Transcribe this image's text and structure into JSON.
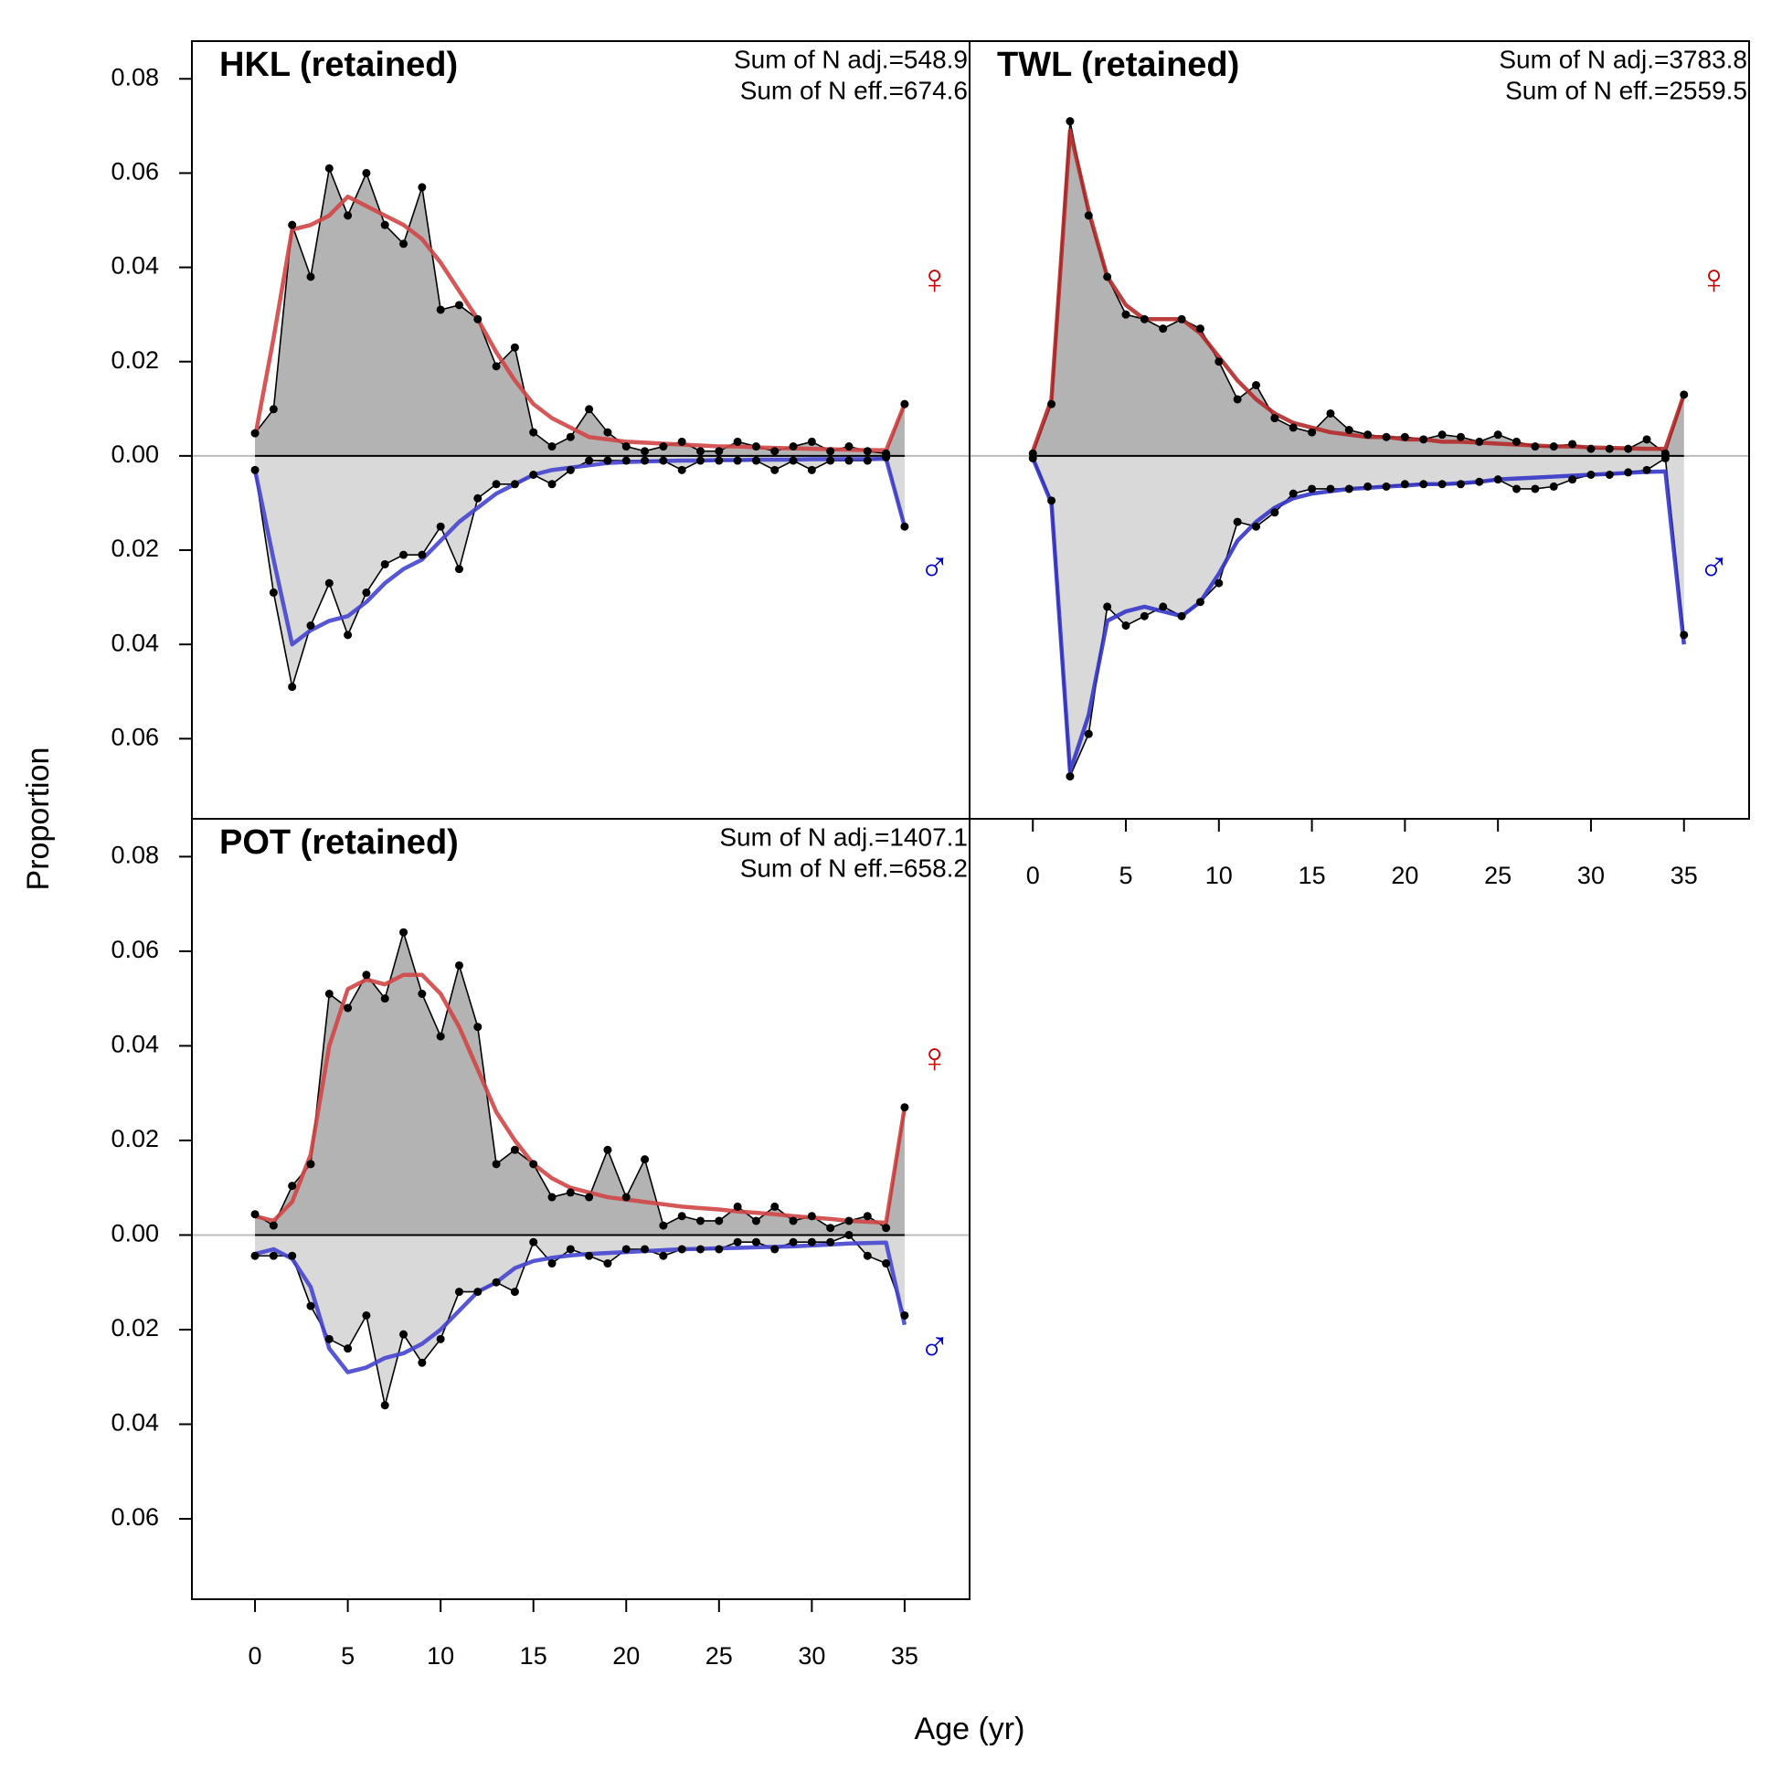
{
  "x_label": "Age (yr)",
  "y_label": "Proportion",
  "chart_data": [
    {
      "type": "area",
      "title": "HKL (retained)",
      "annotations": [
        "Sum of N adj.=548.9",
        "Sum of N eff.=674.6"
      ],
      "x": [
        0,
        1,
        2,
        3,
        4,
        5,
        6,
        7,
        8,
        9,
        10,
        11,
        12,
        13,
        14,
        15,
        16,
        17,
        18,
        19,
        20,
        21,
        22,
        23,
        24,
        25,
        26,
        27,
        28,
        29,
        30,
        31,
        32,
        33,
        34,
        35
      ],
      "xlim": [
        -3.4,
        38.5
      ],
      "ylim": [
        -0.077,
        0.088
      ],
      "yticks": [
        0.08,
        0.06,
        0.04,
        0.02,
        {
          "value": 0,
          "label": "0.00"
        },
        {
          "value": -0.02,
          "label": "0.02"
        },
        {
          "value": -0.04,
          "label": "0.04"
        },
        {
          "value": -0.06,
          "label": "0.06"
        }
      ],
      "series": [
        {
          "name": "♀",
          "color": "#cc0000",
          "direction": "up",
          "fill": "#b3b3b3",
          "obs_color": "#000000",
          "fit_color": "#d04545",
          "values": [
            0.0048,
            0.0099,
            0.049,
            0.038,
            0.061,
            0.051,
            0.06,
            0.049,
            0.045,
            0.057,
            0.031,
            0.032,
            0.029,
            0.019,
            0.023,
            0.005,
            0.002,
            0.004,
            0.0099,
            0.005,
            0.002,
            0.001,
            0.002,
            0.003,
            0.001,
            0.001,
            0.003,
            0.002,
            0.001,
            0.002,
            0.003,
            0.001,
            0.002,
            0.001,
            0.0005,
            0.011
          ],
          "expected": [
            0.004,
            0.025,
            0.048,
            0.049,
            0.051,
            0.055,
            0.053,
            0.051,
            0.049,
            0.046,
            0.041,
            0.035,
            0.029,
            0.022,
            0.016,
            0.011,
            0.008,
            0.006,
            0.004,
            0.0035,
            0.003,
            0.0028,
            0.0026,
            0.0024,
            0.0022,
            0.002,
            0.002,
            0.0018,
            0.0017,
            0.0016,
            0.0015,
            0.0014,
            0.0013,
            0.0012,
            0.0012,
            0.011
          ]
        },
        {
          "name": "♂",
          "color": "#0000cc",
          "direction": "down",
          "fill": "#d9d9d9",
          "obs_color": "#000000",
          "fit_color": "#4545d0",
          "values": [
            0.003,
            0.029,
            0.049,
            0.036,
            0.027,
            0.038,
            0.029,
            0.023,
            0.021,
            0.021,
            0.015,
            0.024,
            0.009,
            0.006,
            0.006,
            0.004,
            0.006,
            0.003,
            0.001,
            0.001,
            0.001,
            0.001,
            0.001,
            0.003,
            0.001,
            0.001,
            0.001,
            0.001,
            0.003,
            0.001,
            0.003,
            0.001,
            0.001,
            0.001,
            0.0003,
            0.015
          ],
          "expected": [
            0.003,
            0.022,
            0.04,
            0.037,
            0.035,
            0.034,
            0.031,
            0.027,
            0.024,
            0.022,
            0.018,
            0.014,
            0.011,
            0.008,
            0.006,
            0.004,
            0.003,
            0.0025,
            0.002,
            0.0015,
            0.0013,
            0.0012,
            0.0011,
            0.001,
            0.001,
            0.0009,
            0.0009,
            0.0008,
            0.0008,
            0.0008,
            0.0007,
            0.0007,
            0.0007,
            0.0007,
            0.0006,
            0.015
          ]
        }
      ]
    },
    {
      "type": "area",
      "title": "TWL (retained)",
      "annotations": [
        "Sum of N adj.=3783.8",
        "Sum of N eff.=2559.5"
      ],
      "x": [
        0,
        1,
        2,
        3,
        4,
        5,
        6,
        7,
        8,
        9,
        10,
        11,
        12,
        13,
        14,
        15,
        16,
        17,
        18,
        19,
        20,
        21,
        22,
        23,
        24,
        25,
        26,
        27,
        28,
        29,
        30,
        31,
        32,
        33,
        34,
        35
      ],
      "xlim": [
        -3.4,
        38.5
      ],
      "ylim": [
        -0.077,
        0.088
      ],
      "xticks": [
        0,
        5,
        10,
        15,
        20,
        25,
        30,
        35
      ],
      "series": [
        {
          "name": "♀",
          "color": "#cc0000",
          "direction": "up",
          "fill": "#b3b3b3",
          "obs_color": "#000000",
          "fit_color": "#b52a2a",
          "values": [
            0.0005,
            0.011,
            0.071,
            0.051,
            0.038,
            0.03,
            0.029,
            0.027,
            0.029,
            0.027,
            0.02,
            0.012,
            0.015,
            0.008,
            0.006,
            0.005,
            0.009,
            0.0055,
            0.0045,
            0.004,
            0.004,
            0.0035,
            0.0045,
            0.004,
            0.003,
            0.0045,
            0.003,
            0.002,
            0.002,
            0.0025,
            0.0015,
            0.0015,
            0.0015,
            0.0035,
            0.0005,
            0.013
          ],
          "expected": [
            0.001,
            0.012,
            0.069,
            0.052,
            0.038,
            0.032,
            0.029,
            0.029,
            0.029,
            0.026,
            0.021,
            0.016,
            0.012,
            0.009,
            0.007,
            0.006,
            0.005,
            0.0045,
            0.004,
            0.004,
            0.0035,
            0.0035,
            0.003,
            0.003,
            0.0028,
            0.0026,
            0.0024,
            0.0022,
            0.002,
            0.002,
            0.0018,
            0.0017,
            0.0016,
            0.0015,
            0.0015,
            0.013
          ]
        },
        {
          "name": "♂",
          "color": "#0000cc",
          "direction": "down",
          "fill": "#d9d9d9",
          "obs_color": "#000000",
          "fit_color": "#3535c8",
          "values": [
            0.0005,
            0.0095,
            0.068,
            0.059,
            0.032,
            0.036,
            0.034,
            0.032,
            0.034,
            0.031,
            0.027,
            0.014,
            0.015,
            0.012,
            0.008,
            0.007,
            0.007,
            0.007,
            0.0065,
            0.0065,
            0.006,
            0.006,
            0.006,
            0.006,
            0.0055,
            0.005,
            0.007,
            0.007,
            0.0065,
            0.005,
            0.004,
            0.004,
            0.0035,
            0.003,
            0.0005,
            0.038
          ],
          "expected": [
            0.0005,
            0.01,
            0.067,
            0.055,
            0.035,
            0.033,
            0.032,
            0.033,
            0.034,
            0.031,
            0.025,
            0.018,
            0.014,
            0.011,
            0.009,
            0.008,
            0.0075,
            0.007,
            0.0068,
            0.0065,
            0.0063,
            0.006,
            0.006,
            0.0058,
            0.0055,
            0.005,
            0.0048,
            0.0046,
            0.0044,
            0.0042,
            0.004,
            0.0038,
            0.0036,
            0.0034,
            0.0033,
            0.04
          ]
        }
      ]
    },
    {
      "type": "area",
      "title": "POT (retained)",
      "annotations": [
        "Sum of N adj.=1407.1",
        "Sum of N eff.=658.2"
      ],
      "x": [
        0,
        1,
        2,
        3,
        4,
        5,
        6,
        7,
        8,
        9,
        10,
        11,
        12,
        13,
        14,
        15,
        16,
        17,
        18,
        19,
        20,
        21,
        22,
        23,
        24,
        25,
        26,
        27,
        28,
        29,
        30,
        31,
        32,
        33,
        34,
        35
      ],
      "xlim": [
        -3.4,
        38.5
      ],
      "ylim": [
        -0.077,
        0.088
      ],
      "xticks": [
        0,
        5,
        10,
        15,
        20,
        25,
        30,
        35
      ],
      "yticks": [
        0.08,
        0.06,
        0.04,
        0.02,
        {
          "value": 0,
          "label": "0.00"
        },
        {
          "value": -0.02,
          "label": "0.02"
        },
        {
          "value": -0.04,
          "label": "0.04"
        },
        {
          "value": -0.06,
          "label": "0.06"
        }
      ],
      "series": [
        {
          "name": "♀",
          "color": "#cc0000",
          "direction": "up",
          "fill": "#b3b3b3",
          "obs_color": "#000000",
          "fit_color": "#d04545",
          "values": [
            0.0044,
            0.002,
            0.0104,
            0.015,
            0.051,
            0.048,
            0.055,
            0.05,
            0.064,
            0.051,
            0.042,
            0.057,
            0.044,
            0.015,
            0.018,
            0.015,
            0.008,
            0.009,
            0.008,
            0.018,
            0.008,
            0.016,
            0.002,
            0.004,
            0.003,
            0.003,
            0.006,
            0.003,
            0.006,
            0.003,
            0.004,
            0.0015,
            0.003,
            0.004,
            0.0015,
            0.027
          ],
          "expected": [
            0.004,
            0.003,
            0.007,
            0.017,
            0.04,
            0.052,
            0.054,
            0.053,
            0.055,
            0.055,
            0.051,
            0.044,
            0.035,
            0.026,
            0.02,
            0.015,
            0.012,
            0.01,
            0.009,
            0.008,
            0.0075,
            0.007,
            0.0065,
            0.006,
            0.0057,
            0.0054,
            0.005,
            0.0047,
            0.0044,
            0.004,
            0.0037,
            0.0034,
            0.003,
            0.0028,
            0.0026,
            0.027
          ]
        },
        {
          "name": "♂",
          "color": "#0000cc",
          "direction": "down",
          "fill": "#d9d9d9",
          "obs_color": "#000000",
          "fit_color": "#4545d0",
          "values": [
            0.0044,
            0.0044,
            0.0044,
            0.015,
            0.022,
            0.024,
            0.017,
            0.036,
            0.021,
            0.027,
            0.022,
            0.012,
            0.012,
            0.01,
            0.012,
            0.0015,
            0.006,
            0.003,
            0.0044,
            0.006,
            0.003,
            0.003,
            0.0044,
            0.003,
            0.003,
            0.003,
            0.0015,
            0.0015,
            0.003,
            0.0015,
            0.0015,
            0.0015,
            0,
            0.0044,
            0.006,
            0.017
          ],
          "expected": [
            0.004,
            0.003,
            0.005,
            0.011,
            0.024,
            0.029,
            0.028,
            0.026,
            0.025,
            0.023,
            0.02,
            0.016,
            0.012,
            0.01,
            0.007,
            0.0055,
            0.0048,
            0.0043,
            0.004,
            0.0038,
            0.0036,
            0.0034,
            0.0032,
            0.003,
            0.0029,
            0.0028,
            0.0027,
            0.0026,
            0.0025,
            0.0024,
            0.0022,
            0.002,
            0.0018,
            0.0017,
            0.0016,
            0.019
          ]
        }
      ]
    }
  ]
}
